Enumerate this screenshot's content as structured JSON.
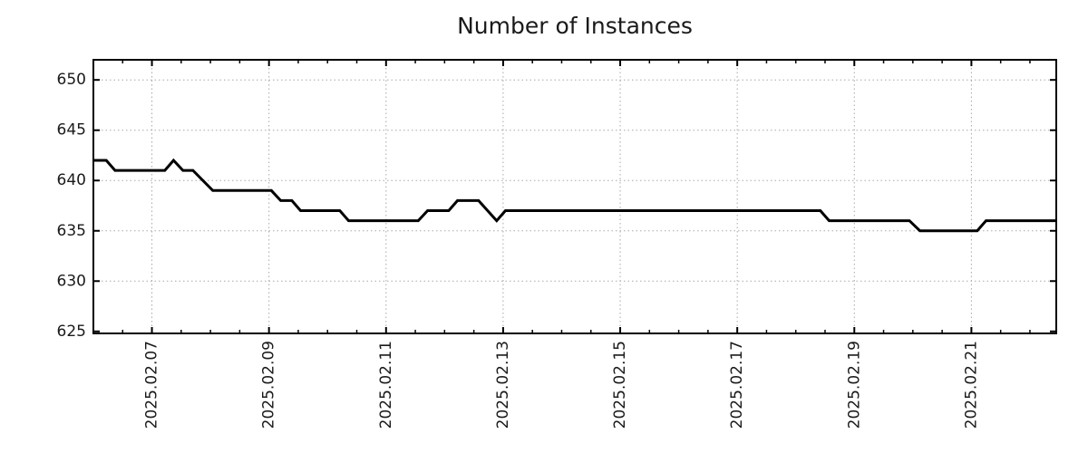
{
  "chart_data": {
    "type": "line",
    "title": "Number of Instances",
    "grid": true,
    "legend": false,
    "background": "#ffffff",
    "axis_color": "#000000",
    "grid_color": "#a8a8a8",
    "text_color": "#1a1a1a",
    "tick_font_size": 17,
    "x_axis": {
      "unit_labels_shown": true,
      "range": [
        6.0,
        22.45
      ],
      "minor_tick_step": 0.5,
      "label_rotation": -90,
      "major_ticks": [
        {
          "value": 7,
          "label": "2025.02.07"
        },
        {
          "value": 9,
          "label": "2025.02.09"
        },
        {
          "value": 11,
          "label": "2025.02.11"
        },
        {
          "value": 13,
          "label": "2025.02.13"
        },
        {
          "value": 15,
          "label": "2025.02.15"
        },
        {
          "value": 17,
          "label": "2025.02.17"
        },
        {
          "value": 19,
          "label": "2025.02.19"
        },
        {
          "value": 21,
          "label": "2025.02.21"
        }
      ]
    },
    "y_axis": {
      "range": [
        624.8,
        652.0
      ],
      "major_ticks": [
        {
          "value": 625,
          "label": "625"
        },
        {
          "value": 630,
          "label": "630"
        },
        {
          "value": 635,
          "label": "635"
        },
        {
          "value": 640,
          "label": "640"
        },
        {
          "value": 645,
          "label": "645"
        },
        {
          "value": 650,
          "label": "650"
        }
      ]
    },
    "series": [
      {
        "name": "instances",
        "color": "#000000",
        "line_width": 3,
        "points": [
          [
            6.0,
            642
          ],
          [
            6.22,
            642
          ],
          [
            6.37,
            641
          ],
          [
            7.22,
            641
          ],
          [
            7.37,
            642
          ],
          [
            7.53,
            641
          ],
          [
            7.7,
            641
          ],
          [
            8.04,
            639
          ],
          [
            9.04,
            639
          ],
          [
            9.2,
            638
          ],
          [
            9.39,
            638
          ],
          [
            9.54,
            637
          ],
          [
            10.21,
            637
          ],
          [
            10.36,
            636
          ],
          [
            11.55,
            636
          ],
          [
            11.71,
            637
          ],
          [
            12.07,
            637
          ],
          [
            12.22,
            638
          ],
          [
            12.58,
            638
          ],
          [
            12.89,
            636
          ],
          [
            13.04,
            637
          ],
          [
            18.42,
            637
          ],
          [
            18.57,
            636
          ],
          [
            19.94,
            636
          ],
          [
            20.12,
            635
          ],
          [
            21.1,
            635
          ],
          [
            21.25,
            636
          ],
          [
            22.45,
            636
          ]
        ]
      }
    ]
  }
}
